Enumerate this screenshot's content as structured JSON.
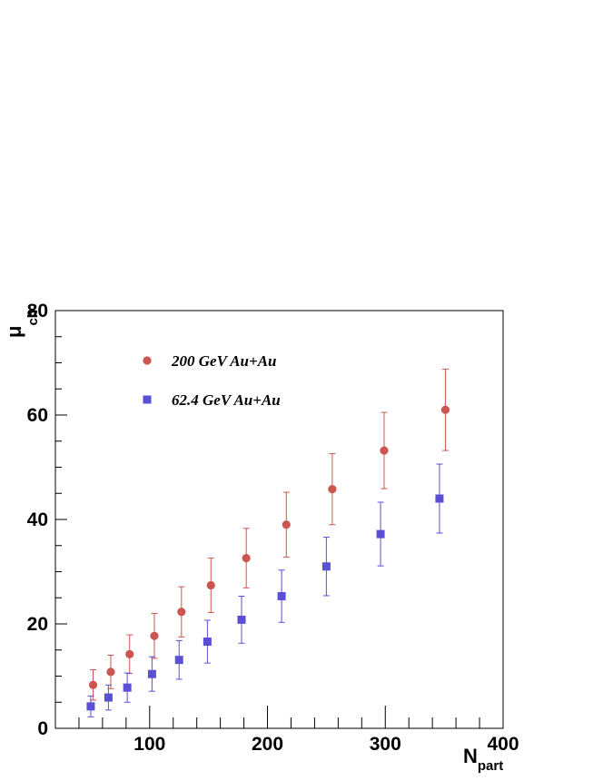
{
  "chart_data": {
    "type": "scatter",
    "xlabel": "N",
    "xlabel_sub": "part",
    "ylabel": "μ",
    "ylabel_sub": "ch",
    "xlim": [
      20,
      400
    ],
    "ylim": [
      0,
      80
    ],
    "x_ticks": [
      100,
      200,
      300,
      400
    ],
    "y_ticks": [
      0,
      20,
      40,
      60,
      80
    ],
    "grid": false,
    "legend_position": "top-left",
    "series": [
      {
        "name": "200 GeV Au+Au",
        "marker": "circle",
        "color": "#cc5550",
        "x": [
          52,
          67,
          83,
          104,
          127,
          152,
          182,
          216,
          255,
          299,
          351
        ],
        "y": [
          8.3,
          10.8,
          14.2,
          17.7,
          22.3,
          27.4,
          32.6,
          39.0,
          45.8,
          53.2,
          61.0
        ],
        "err": [
          2.9,
          3.2,
          3.7,
          4.3,
          4.8,
          5.2,
          5.7,
          6.2,
          6.8,
          7.3,
          7.8
        ]
      },
      {
        "name": "62.4 GeV Au+Au",
        "marker": "square",
        "color": "#5a4fd6",
        "x": [
          50,
          65,
          81,
          102,
          125,
          149,
          178,
          212,
          250,
          296,
          346
        ],
        "y": [
          4.2,
          5.9,
          7.8,
          10.4,
          13.1,
          16.6,
          20.8,
          25.3,
          31.0,
          37.2,
          44.0
        ],
        "err": [
          2.0,
          2.4,
          2.8,
          3.3,
          3.7,
          4.1,
          4.5,
          5.0,
          5.6,
          6.1,
          6.6
        ]
      }
    ]
  }
}
